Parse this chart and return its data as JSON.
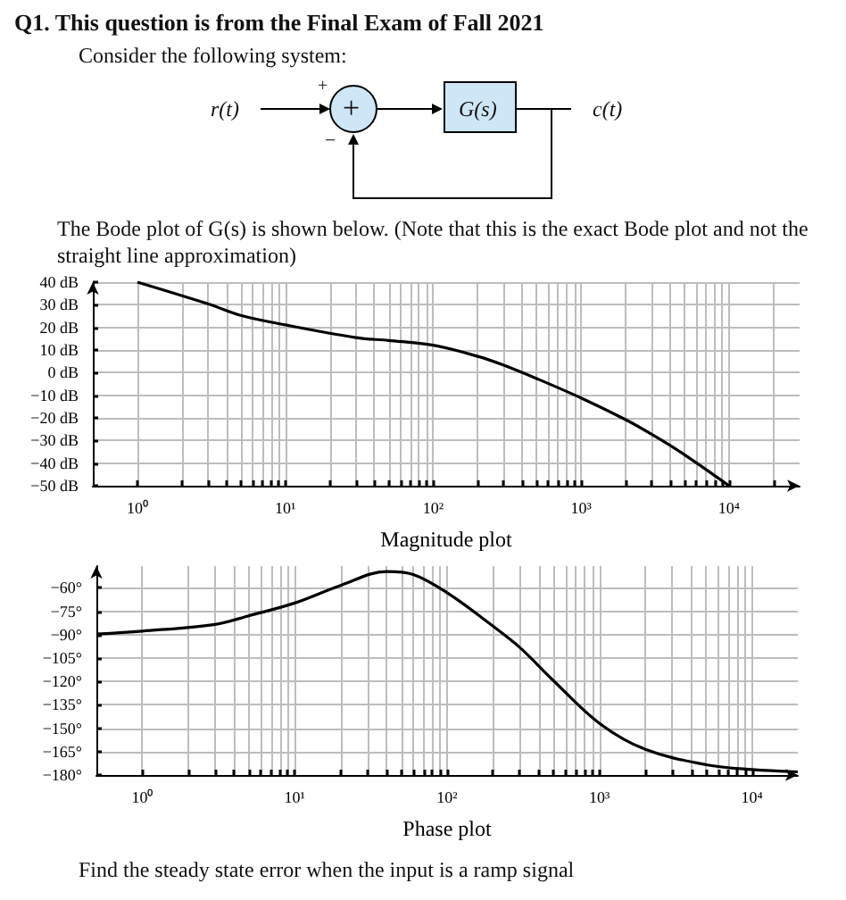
{
  "chart_data": [
    {
      "type": "line",
      "title": "Q1. This question is from the Final Exam of Fall 2021",
      "subtitle": "Consider the following system:",
      "annotations": [
        "r(t)",
        "+",
        "+",
        "−",
        "G(s)",
        "c(t)",
        "The Bode plot of G(s) is shown below. (Note that this is the exact Bode plot and not the straight line approximation)"
      ],
      "xlabel": "Magnitude plot",
      "log": "x",
      "grid": true,
      "marker": "none",
      "line_style": "solid",
      "xlim": [
        0.5,
        30000
      ],
      "xticks": [
        {
          "value": 1,
          "label": "10⁰"
        },
        {
          "value": 2,
          "label": null
        },
        {
          "value": 3,
          "label": null
        },
        {
          "value": 4,
          "label": null
        },
        {
          "value": 5,
          "label": null
        },
        {
          "value": 6,
          "label": null
        },
        {
          "value": 7,
          "label": null
        },
        {
          "value": 8,
          "label": null
        },
        {
          "value": 9,
          "label": null
        },
        {
          "value": 10,
          "label": "10¹"
        },
        {
          "value": 20,
          "label": null
        },
        {
          "value": 30,
          "label": null
        },
        {
          "value": 40,
          "label": null
        },
        {
          "value": 50,
          "label": null
        },
        {
          "value": 60,
          "label": null
        },
        {
          "value": 70,
          "label": null
        },
        {
          "value": 80,
          "label": null
        },
        {
          "value": 90,
          "label": null
        },
        {
          "value": 100,
          "label": "10²"
        },
        {
          "value": 200,
          "label": null
        },
        {
          "value": 300,
          "label": null
        },
        {
          "value": 400,
          "label": null
        },
        {
          "value": 500,
          "label": null
        },
        {
          "value": 600,
          "label": null
        },
        {
          "value": 700,
          "label": null
        },
        {
          "value": 800,
          "label": null
        },
        {
          "value": 900,
          "label": null
        },
        {
          "value": 1000,
          "label": "10³"
        },
        {
          "value": 2000,
          "label": null
        },
        {
          "value": 3000,
          "label": null
        },
        {
          "value": 4000,
          "label": null
        },
        {
          "value": 5000,
          "label": null
        },
        {
          "value": 6000,
          "label": null
        },
        {
          "value": 7000,
          "label": null
        },
        {
          "value": 8000,
          "label": null
        },
        {
          "value": 9000,
          "label": null
        },
        {
          "value": 10000,
          "label": "10⁴"
        },
        {
          "value": 20000,
          "label": null
        }
      ],
      "ylim": [
        -50,
        40
      ],
      "yticks": [
        {
          "value": 40,
          "label": "40 dB"
        },
        {
          "value": 30,
          "label": "30 dB"
        },
        {
          "value": 20,
          "label": "20 dB"
        },
        {
          "value": 10,
          "label": "10 dB"
        },
        {
          "value": 0,
          "label": "0 dB"
        },
        {
          "value": -10,
          "label": "−10 dB"
        },
        {
          "value": -20,
          "label": "−20 dB"
        },
        {
          "value": -30,
          "label": "−30 dB"
        },
        {
          "value": -40,
          "label": "−40 dB"
        },
        {
          "value": -50,
          "label": "−50 dB"
        }
      ],
      "x": [
        1,
        3,
        5,
        10,
        30,
        50,
        100,
        200,
        300,
        500,
        1000,
        2000,
        3000,
        5000,
        10000
      ],
      "series": [
        {
          "color": "#000000",
          "values": [
            40,
            30.4,
            25.3,
            21.1,
            15.5,
            14.2,
            12.1,
            7.2,
            3.3,
            -2.6,
            -11.2,
            -20.8,
            -27.3,
            -36.3,
            -50
          ]
        }
      ]
    },
    {
      "type": "line",
      "xlabel": "Phase plot",
      "annotations": [
        "Find the steady state error when the input is a ramp signal"
      ],
      "log": "x",
      "grid": true,
      "marker": "none",
      "line_style": "solid",
      "xlim": [
        0.5,
        20000
      ],
      "xticks": [
        {
          "value": 1,
          "label": "10⁰"
        },
        {
          "value": 2,
          "label": null
        },
        {
          "value": 3,
          "label": null
        },
        {
          "value": 4,
          "label": null
        },
        {
          "value": 5,
          "label": null
        },
        {
          "value": 6,
          "label": null
        },
        {
          "value": 7,
          "label": null
        },
        {
          "value": 8,
          "label": null
        },
        {
          "value": 9,
          "label": null
        },
        {
          "value": 10,
          "label": "10¹"
        },
        {
          "value": 20,
          "label": null
        },
        {
          "value": 30,
          "label": null
        },
        {
          "value": 40,
          "label": null
        },
        {
          "value": 50,
          "label": null
        },
        {
          "value": 60,
          "label": null
        },
        {
          "value": 70,
          "label": null
        },
        {
          "value": 80,
          "label": null
        },
        {
          "value": 90,
          "label": null
        },
        {
          "value": 100,
          "label": "10²"
        },
        {
          "value": 200,
          "label": null
        },
        {
          "value": 300,
          "label": null
        },
        {
          "value": 400,
          "label": null
        },
        {
          "value": 500,
          "label": null
        },
        {
          "value": 600,
          "label": null
        },
        {
          "value": 700,
          "label": null
        },
        {
          "value": 800,
          "label": null
        },
        {
          "value": 900,
          "label": null
        },
        {
          "value": 1000,
          "label": "10³"
        },
        {
          "value": 2000,
          "label": null
        },
        {
          "value": 3000,
          "label": null
        },
        {
          "value": 4000,
          "label": null
        },
        {
          "value": 5000,
          "label": null
        },
        {
          "value": 6000,
          "label": null
        },
        {
          "value": 7000,
          "label": null
        },
        {
          "value": 8000,
          "label": null
        },
        {
          "value": 9000,
          "label": null
        },
        {
          "value": 10000,
          "label": "10⁴"
        }
      ],
      "ylim": [
        -180,
        -46
      ],
      "yticks": [
        {
          "value": -60,
          "label": "−60°"
        },
        {
          "value": -75,
          "label": "−75°"
        },
        {
          "value": -90,
          "label": "−90°"
        },
        {
          "value": -105,
          "label": "−105°"
        },
        {
          "value": -120,
          "label": "−120°"
        },
        {
          "value": -135,
          "label": "−135°"
        },
        {
          "value": -150,
          "label": "−150°"
        },
        {
          "value": -165,
          "label": "−165°"
        },
        {
          "value": -180,
          "label": "−180°"
        }
      ],
      "x": [
        0.5,
        1,
        3,
        5,
        10,
        20,
        40,
        60,
        100,
        200,
        300,
        500,
        1000,
        2000,
        5000,
        10000,
        20000
      ],
      "series": [
        {
          "color": "#000000",
          "values": [
            -89.6,
            -87.7,
            -83.4,
            -77.9,
            -69.7,
            -58.4,
            -49.5,
            -51.4,
            -63.1,
            -84.5,
            -98.2,
            -119.6,
            -146.9,
            -163.6,
            -173.4,
            -176.5,
            -178
          ]
        }
      ]
    }
  ]
}
